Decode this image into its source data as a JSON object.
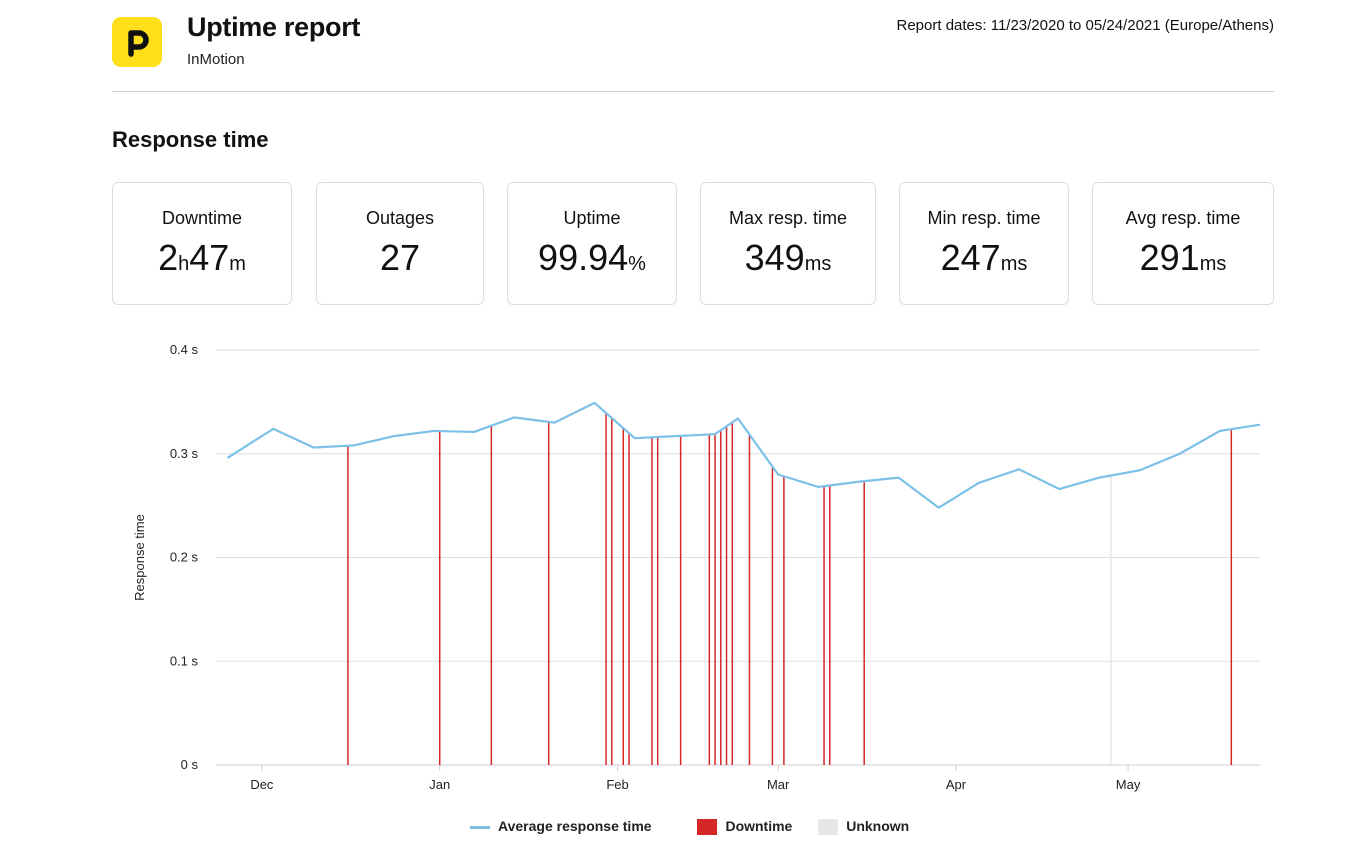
{
  "header": {
    "title": "Uptime report",
    "subtitle": "InMotion",
    "report_dates": "Report dates: 11/23/2020 to 05/24/2021 (Europe/Athens)",
    "logo_color": "#ffe01a",
    "logo_icon": "p-letter-logo-icon"
  },
  "section_title": "Response time",
  "stats": [
    {
      "label": "Downtime",
      "parts": [
        "2",
        "h",
        "47",
        "m"
      ]
    },
    {
      "label": "Outages",
      "parts": [
        "27"
      ]
    },
    {
      "label": "Uptime",
      "parts": [
        "99.94",
        "%"
      ]
    },
    {
      "label": "Max resp. time",
      "parts": [
        "349",
        "ms"
      ]
    },
    {
      "label": "Min resp. time",
      "parts": [
        "247",
        "ms"
      ]
    },
    {
      "label": "Avg resp. time",
      "parts": [
        "291",
        "ms"
      ]
    }
  ],
  "legend": {
    "avg_label": "Average response time",
    "downtime_label": "Downtime",
    "unknown_label": "Unknown"
  },
  "colors": {
    "line": "#7cc0e8",
    "downtime": "#d62728",
    "unknown": "#e6e6e6",
    "grid": "#dddddd"
  },
  "chart_data": {
    "type": "line",
    "ylabel": "Response time",
    "ylim": [
      0,
      0.4
    ],
    "yticks": [
      0,
      0.1,
      0.2,
      0.3,
      0.4
    ],
    "ytick_labels": [
      "0 s",
      "0.1 s",
      "0.2 s",
      "0.3 s",
      "0.4 s"
    ],
    "xlim": [
      "2020-11-23",
      "2021-05-24"
    ],
    "xticks": [
      {
        "date": "2020-12-01",
        "label": "Dec"
      },
      {
        "date": "2021-01-01",
        "label": "Jan"
      },
      {
        "date": "2021-02-01",
        "label": "Feb"
      },
      {
        "date": "2021-03-01",
        "label": "Mar"
      },
      {
        "date": "2021-04-01",
        "label": "Apr"
      },
      {
        "date": "2021-05-01",
        "label": "May"
      }
    ],
    "grid": true,
    "legend_position": "bottom-center",
    "series": [
      {
        "name": "Average response time",
        "x": [
          "2020-11-25",
          "2020-12-03",
          "2020-12-10",
          "2020-12-17",
          "2020-12-24",
          "2020-12-31",
          "2021-01-07",
          "2021-01-14",
          "2021-01-21",
          "2021-01-28",
          "2021-02-04",
          "2021-02-11",
          "2021-02-15",
          "2021-02-18",
          "2021-02-22",
          "2021-03-01",
          "2021-03-08",
          "2021-03-15",
          "2021-03-22",
          "2021-03-29",
          "2021-04-05",
          "2021-04-12",
          "2021-04-19",
          "2021-04-26",
          "2021-05-03",
          "2021-05-10",
          "2021-05-17",
          "2021-05-24"
        ],
        "y": [
          0.296,
          0.324,
          0.306,
          0.308,
          0.317,
          0.322,
          0.321,
          0.335,
          0.33,
          0.349,
          0.315,
          0.317,
          0.318,
          0.319,
          0.334,
          0.28,
          0.268,
          0.273,
          0.277,
          0.248,
          0.272,
          0.285,
          0.266,
          0.277,
          0.284,
          0.3,
          0.322,
          0.328
        ]
      }
    ],
    "downtime_events": [
      "2020-12-16",
      "2021-01-01",
      "2021-01-10",
      "2021-01-20",
      "2021-01-30",
      "2021-01-31",
      "2021-02-02",
      "2021-02-03",
      "2021-02-07",
      "2021-02-08",
      "2021-02-12",
      "2021-02-17",
      "2021-02-18",
      "2021-02-19",
      "2021-02-20",
      "2021-02-21",
      "2021-02-24",
      "2021-02-28",
      "2021-03-02",
      "2021-03-09",
      "2021-03-10",
      "2021-03-16",
      "2021-05-19"
    ],
    "unknown_events": [
      "2021-04-28"
    ]
  }
}
